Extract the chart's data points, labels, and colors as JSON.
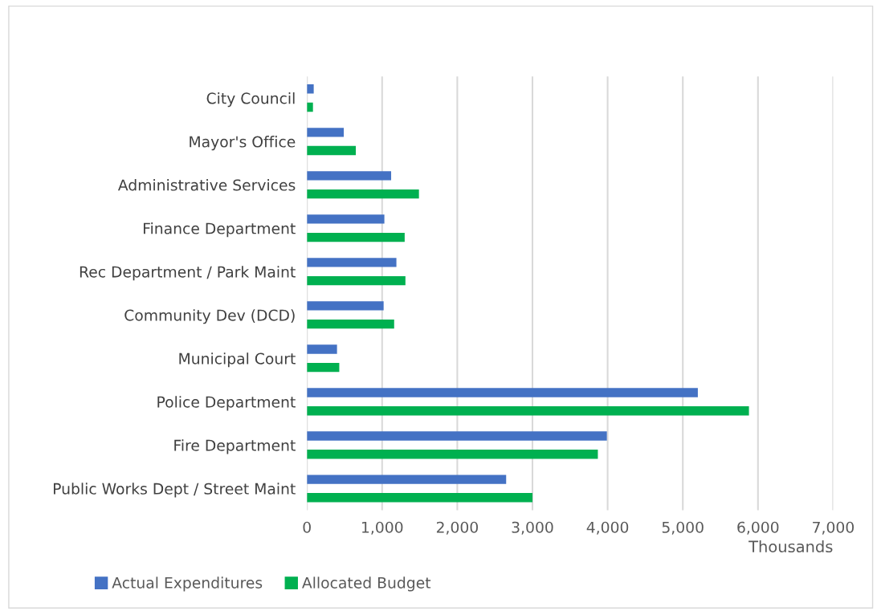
{
  "chart_data": {
    "type": "bar",
    "orientation": "horizontal",
    "xlabel": "Thousands",
    "categories": [
      "City Council",
      "Mayor's Office",
      "Administrative Services",
      "Finance Department",
      "Rec Department / Park Maint",
      "Community Dev (DCD)",
      "Municipal Court",
      "Police Department",
      "Fire Department",
      "Public Works Dept / Street Maint"
    ],
    "series": [
      {
        "name": "Actual Expenditures",
        "color": "#4472c4",
        "values": [
          90,
          490,
          1120,
          1030,
          1190,
          1020,
          400,
          5200,
          3990,
          2650
        ]
      },
      {
        "name": "Allocated Budget",
        "color": "#00b050",
        "values": [
          80,
          650,
          1490,
          1300,
          1310,
          1160,
          430,
          5880,
          3870,
          3000
        ]
      }
    ],
    "xlim": [
      0,
      7000
    ],
    "xticks": [
      0,
      {
        "value": 1000,
        "label": "1,000"
      },
      {
        "value": 2000,
        "label": "2,000"
      },
      {
        "value": 3000,
        "label": "3,000"
      },
      {
        "value": 4000,
        "label": "4,000"
      },
      {
        "value": 5000,
        "label": "5,000"
      },
      {
        "value": 6000,
        "label": "6,000"
      },
      {
        "value": 7000,
        "label": "7,000"
      }
    ],
    "grid": "x",
    "legend": "bottom"
  }
}
